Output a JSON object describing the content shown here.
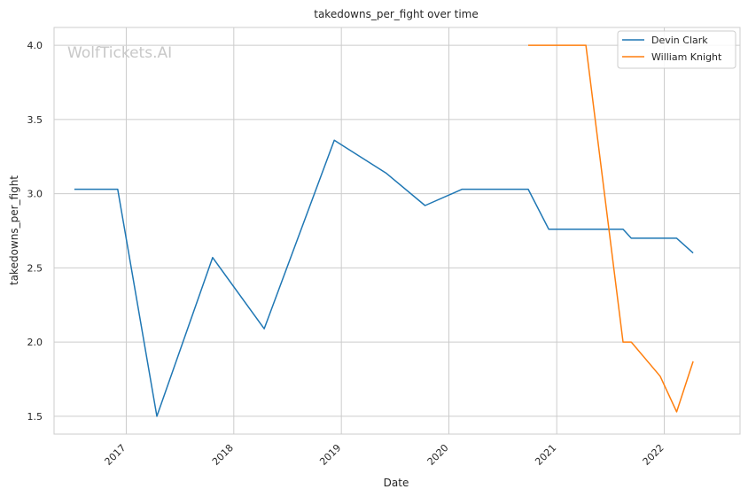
{
  "chart_data": {
    "type": "line",
    "title": "takedowns_per_fight over time",
    "xlabel": "Date",
    "ylabel": "takedowns_per_fight",
    "x_ticks": [
      "2017",
      "2018",
      "2019",
      "2020",
      "2021",
      "2022"
    ],
    "y_ticks": [
      "1.5",
      "2.0",
      "2.5",
      "3.0",
      "3.5",
      "4.0"
    ],
    "xlim": [
      "2016-05-01",
      "2022-09-15"
    ],
    "ylim": [
      1.38,
      4.12
    ],
    "grid": true,
    "legend_position": "top-right",
    "watermark": "WolfTickets.AI",
    "series": [
      {
        "name": "Devin Clark",
        "color": "#1f77b4",
        "points": [
          {
            "x": "2016-07-09",
            "y": 3.03
          },
          {
            "x": "2016-12-03",
            "y": 3.03
          },
          {
            "x": "2017-04-15",
            "y": 1.5
          },
          {
            "x": "2017-10-21",
            "y": 2.57
          },
          {
            "x": "2018-04-14",
            "y": 2.09
          },
          {
            "x": "2018-12-08",
            "y": 3.36
          },
          {
            "x": "2019-06-01",
            "y": 3.14
          },
          {
            "x": "2019-10-12",
            "y": 2.92
          },
          {
            "x": "2020-02-15",
            "y": 3.03
          },
          {
            "x": "2020-06-13",
            "y": 3.03
          },
          {
            "x": "2020-09-26",
            "y": 3.03
          },
          {
            "x": "2020-12-05",
            "y": 2.76
          },
          {
            "x": "2021-08-14",
            "y": 2.76
          },
          {
            "x": "2021-09-11",
            "y": 2.7
          },
          {
            "x": "2022-02-12",
            "y": 2.7
          },
          {
            "x": "2022-04-09",
            "y": 2.6
          }
        ]
      },
      {
        "name": "William Knight",
        "color": "#ff7f0e",
        "points": [
          {
            "x": "2020-09-26",
            "y": 4.0
          },
          {
            "x": "2021-04-10",
            "y": 4.0
          },
          {
            "x": "2021-08-14",
            "y": 2.0
          },
          {
            "x": "2021-09-11",
            "y": 2.0
          },
          {
            "x": "2021-12-18",
            "y": 1.77
          },
          {
            "x": "2022-02-12",
            "y": 1.53
          },
          {
            "x": "2022-04-09",
            "y": 1.87
          }
        ]
      }
    ]
  }
}
